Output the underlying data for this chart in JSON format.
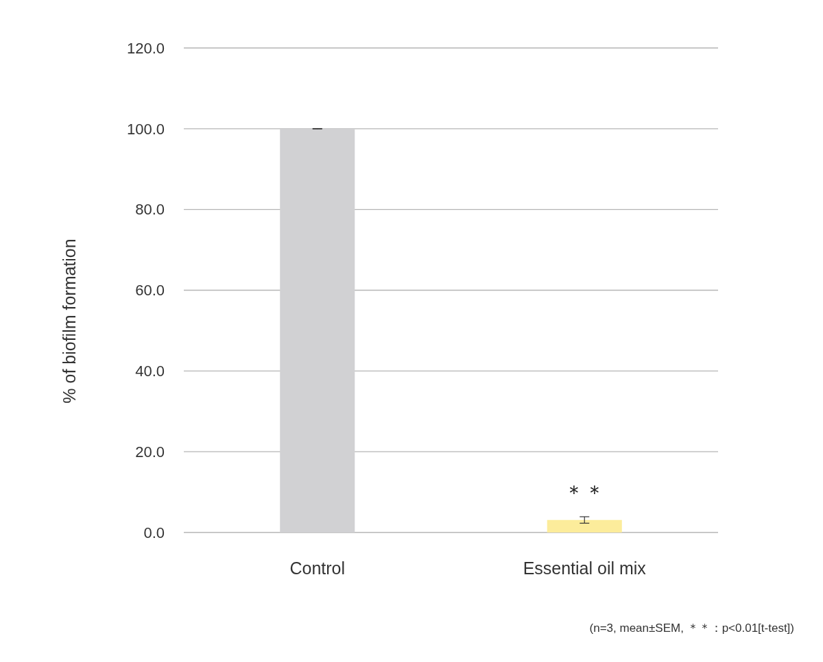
{
  "chart_data": {
    "type": "bar",
    "ylabel": "% of biofilm formation",
    "categories": [
      "Control",
      "Essential oil mix"
    ],
    "values": [
      100.0,
      3.1
    ],
    "colors": [
      "#d1d1d3",
      "#fcec9b"
    ],
    "errors": [
      0.05,
      0.8
    ],
    "ylim": [
      0,
      120
    ],
    "yticks": [
      {
        "value": 0,
        "label": "0.0"
      },
      {
        "value": 20,
        "label": "20.0"
      },
      {
        "value": 40,
        "label": "40.0"
      },
      {
        "value": 60,
        "label": "60.0"
      },
      {
        "value": 80,
        "label": "80.0"
      },
      {
        "value": 100,
        "label": "100.0"
      },
      {
        "value": 120,
        "label": "120.0"
      }
    ],
    "grid": "y",
    "annotations": [
      "＊＊",
      "(n=3, mean±SEM, ＊＊：p<0.01[t-test])"
    ]
  }
}
